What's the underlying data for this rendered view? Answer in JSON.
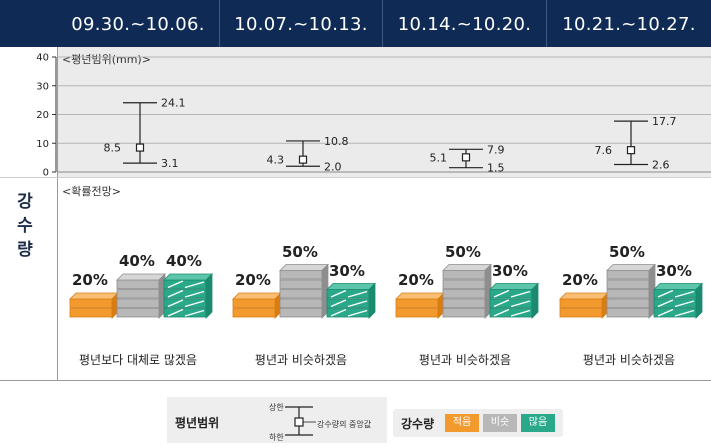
{
  "header": {
    "weeks": [
      "09.30.~10.06.",
      "10.07.~10.13.",
      "10.14.~10.20.",
      "10.21.~10.27."
    ]
  },
  "row_label": [
    "강",
    "수",
    "량"
  ],
  "range_section": {
    "label": "<평년범위(mm)>"
  },
  "prob_section": {
    "label": "<확률전망>",
    "summaries": [
      "평년보다 대체로 많겠음",
      "평년과 비슷하겠음",
      "평년과 비슷하겠음",
      "평년과 비슷하겠음"
    ]
  },
  "chart_data": [
    {
      "type": "errorbar",
      "title": "<평년범위(mm)>",
      "ylim": [
        0,
        40
      ],
      "yticks": [
        "0",
        "10",
        "20",
        "30",
        "40"
      ],
      "categories": [
        "09.30.~10.06.",
        "10.07.~10.13.",
        "10.14.~10.20.",
        "10.21.~10.27."
      ],
      "upper": [
        24.1,
        10.8,
        7.9,
        17.7
      ],
      "median": [
        8.5,
        4.3,
        5.1,
        7.6
      ],
      "lower": [
        3.1,
        2.0,
        1.5,
        2.6
      ],
      "upper_labels": [
        "24.1",
        "10.8",
        "7.9",
        "17.7"
      ],
      "median_labels": [
        "8.5",
        "4.3",
        "5.1",
        "7.6"
      ],
      "lower_labels": [
        "3.1",
        "2.0",
        "1.5",
        "2.6"
      ],
      "grid": true
    },
    {
      "type": "bar",
      "title": "<확률전망>",
      "categories": [
        "09.30.~10.06.",
        "10.07.~10.13.",
        "10.14.~10.20.",
        "10.21.~10.27."
      ],
      "series": [
        {
          "name": "적음",
          "values": [
            20,
            20,
            20,
            20
          ],
          "labels": [
            "20%",
            "20%",
            "20%",
            "20%"
          ],
          "color": "#f39a2e"
        },
        {
          "name": "비슷",
          "values": [
            40,
            50,
            50,
            50
          ],
          "labels": [
            "40%",
            "50%",
            "50%",
            "50%"
          ],
          "color": "#b8b8b8"
        },
        {
          "name": "많음",
          "values": [
            40,
            30,
            30,
            30
          ],
          "labels": [
            "40%",
            "30%",
            "30%",
            "30%"
          ],
          "color": "#2aa98a"
        }
      ]
    }
  ],
  "legend": {
    "range_title": "평년범위",
    "upper": "상한",
    "lower": "하한",
    "median": "강수량의 중앙값",
    "prob_title": "강수량",
    "badges": [
      {
        "label": "적음",
        "color": "#f39a2e"
      },
      {
        "label": "비슷",
        "color": "#b8b8b8"
      },
      {
        "label": "많음",
        "color": "#2aa98a"
      }
    ]
  }
}
